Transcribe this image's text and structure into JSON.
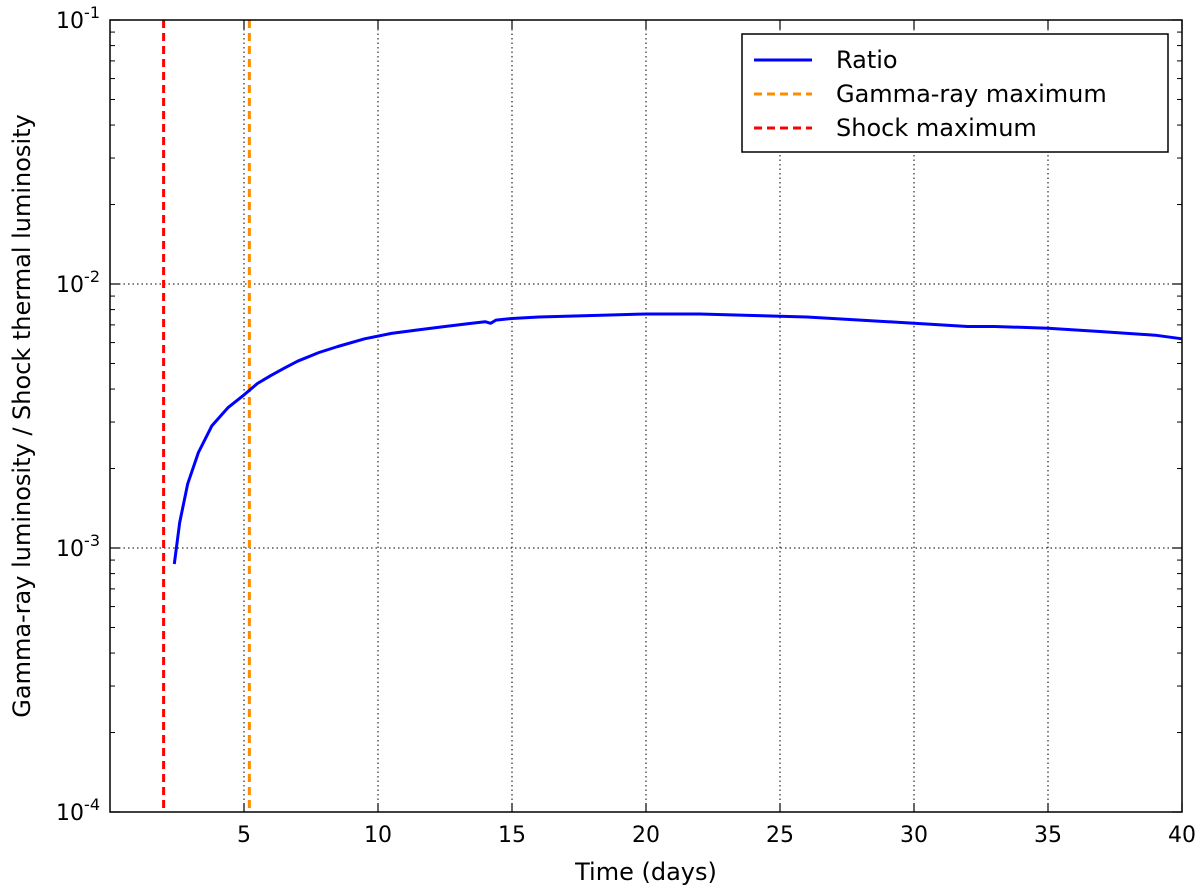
{
  "chart_data": {
    "type": "line",
    "xlabel": "Time (days)",
    "ylabel": "Gamma-ray luminosity / Shock thermal luminosity",
    "xlim": [
      0,
      40
    ],
    "ylim": [
      0.0001,
      0.1
    ],
    "yscale": "log",
    "grid": true,
    "legend_position": "top-right",
    "x_ticks": [
      5,
      10,
      15,
      20,
      25,
      30,
      35,
      40
    ],
    "x_tick_labels": [
      "5",
      "10",
      "15",
      "20",
      "25",
      "30",
      "35",
      "40"
    ],
    "y_ticks": [
      0.0001,
      0.001,
      0.01,
      0.1
    ],
    "y_tick_labels": [
      {
        "base": "10",
        "exp": "-4"
      },
      {
        "base": "10",
        "exp": "-3"
      },
      {
        "base": "10",
        "exp": "-2"
      },
      {
        "base": "10",
        "exp": "-1"
      }
    ],
    "series": [
      {
        "name": "Ratio",
        "style": "solid",
        "color": "#0000ff",
        "x": [
          2.4,
          2.6,
          2.9,
          3.3,
          3.8,
          4.4,
          5.0,
          5.5,
          6.0,
          6.5,
          7.0,
          7.8,
          8.5,
          9.5,
          10.5,
          11.5,
          12.5,
          13.5,
          14.0,
          14.2,
          14.4,
          15.0,
          16.0,
          18.0,
          20.0,
          22.0,
          24.0,
          26.0,
          28.0,
          30.0,
          32.0,
          33.0,
          35.0,
          37.0,
          39.0,
          40.0
        ],
        "y": [
          0.00087,
          0.00125,
          0.00175,
          0.0023,
          0.0029,
          0.0034,
          0.0038,
          0.0042,
          0.0045,
          0.0048,
          0.0051,
          0.0055,
          0.0058,
          0.0062,
          0.0065,
          0.0067,
          0.0069,
          0.0071,
          0.0072,
          0.0071,
          0.0073,
          0.0074,
          0.0075,
          0.0076,
          0.0077,
          0.0077,
          0.0076,
          0.0075,
          0.0073,
          0.0071,
          0.0069,
          0.0069,
          0.0068,
          0.0066,
          0.0064,
          0.0062
        ]
      },
      {
        "name": "Gamma-ray maximum",
        "style": "dashed-vertical",
        "color": "#ff8c00",
        "x_value": 5.2
      },
      {
        "name": "Shock maximum",
        "style": "dashed-vertical",
        "color": "#ff0000",
        "x_value": 2.0
      }
    ]
  }
}
